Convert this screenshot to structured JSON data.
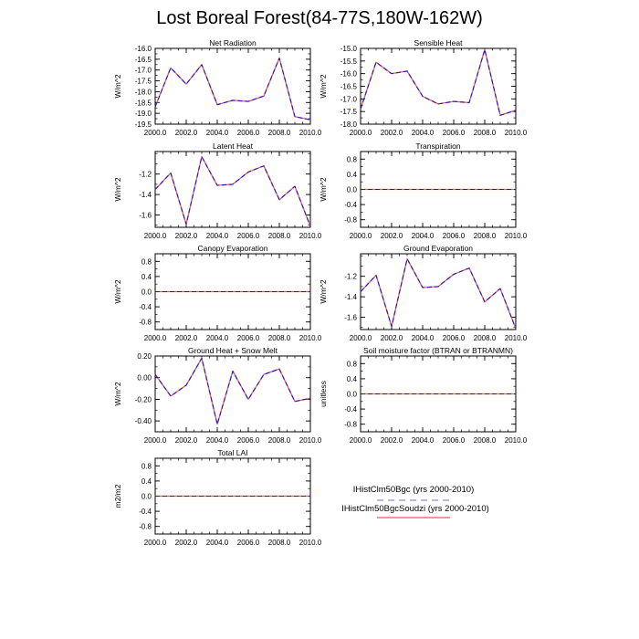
{
  "figure": {
    "title": "Lost Boreal Forest(84-77S,180W-162W)"
  },
  "legend": {
    "items": [
      {
        "label": "IHistClm50Bgc (yrs 2000-2010)",
        "color": "#8c8cd6",
        "style": "dashed"
      },
      {
        "label": "IHistClm50BgcSoudzi (yrs 2000-2010)",
        "color": "#e85a5a",
        "style": "solid"
      }
    ]
  },
  "chart_data": [
    {
      "type": "line",
      "title": "Net Radiation",
      "ylabel": "W/m^2",
      "x": [
        2000,
        2001,
        2002,
        2003,
        2004,
        2005,
        2006,
        2007,
        2008,
        2009,
        2010
      ],
      "xlim": [
        2000,
        2010
      ],
      "xticks": [
        "2000.0",
        "2002.0",
        "2004.0",
        "2006.0",
        "2008.0",
        "2010.0"
      ],
      "ylim": [
        -19.5,
        -16.0
      ],
      "yticks": [
        "-16.0",
        "-16.5",
        "-17.0",
        "-17.5",
        "-18.0",
        "-18.5",
        "-19.0",
        "-19.5"
      ],
      "series": [
        {
          "color": "#e85a5a",
          "dashed": false,
          "values": [
            -18.7,
            -16.9,
            -17.65,
            -16.75,
            -18.6,
            -18.4,
            -18.45,
            -18.2,
            -16.45,
            -19.15,
            -19.3
          ]
        },
        {
          "color": "#1a1acc",
          "dashed": true,
          "values": [
            -18.7,
            -16.9,
            -17.65,
            -16.75,
            -18.6,
            -18.4,
            -18.45,
            -18.2,
            -16.45,
            -19.15,
            -19.3
          ]
        }
      ]
    },
    {
      "type": "line",
      "title": "Sensible Heat",
      "ylabel": "W/m^2",
      "x": [
        2000,
        2001,
        2002,
        2003,
        2004,
        2005,
        2006,
        2007,
        2008,
        2009,
        2010
      ],
      "xlim": [
        2000,
        2010
      ],
      "xticks": [
        "2000.0",
        "2002.0",
        "2004.0",
        "2006.0",
        "2008.0",
        "2010.0"
      ],
      "ylim": [
        -18.0,
        -15.0
      ],
      "yticks": [
        "-15.0",
        "-15.5",
        "-16.0",
        "-16.5",
        "-17.0",
        "-17.5",
        "-18.0"
      ],
      "series": [
        {
          "color": "#e85a5a",
          "dashed": false,
          "values": [
            -17.4,
            -15.55,
            -16.0,
            -15.9,
            -16.9,
            -17.2,
            -17.1,
            -17.15,
            -15.05,
            -17.65,
            -17.45
          ]
        },
        {
          "color": "#1a1acc",
          "dashed": true,
          "values": [
            -17.4,
            -15.55,
            -16.0,
            -15.9,
            -16.9,
            -17.2,
            -17.1,
            -17.15,
            -15.05,
            -17.65,
            -17.45
          ]
        }
      ]
    },
    {
      "type": "line",
      "title": "Latent Heat",
      "ylabel": "W/m^2",
      "x": [
        2000,
        2001,
        2002,
        2003,
        2004,
        2005,
        2006,
        2007,
        2008,
        2009,
        2010
      ],
      "xlim": [
        2000,
        2010
      ],
      "xticks": [
        "2000.0",
        "2002.0",
        "2004.0",
        "2006.0",
        "2008.0",
        "2010.0"
      ],
      "ylim": [
        -1.72,
        -0.98
      ],
      "yticks": [
        "-1.2",
        "-1.4",
        "-1.6"
      ],
      "series": [
        {
          "color": "#e85a5a",
          "dashed": false,
          "values": [
            -1.35,
            -1.19,
            -1.69,
            -1.03,
            -1.31,
            -1.3,
            -1.18,
            -1.12,
            -1.45,
            -1.32,
            -1.71
          ]
        },
        {
          "color": "#1a1acc",
          "dashed": true,
          "values": [
            -1.35,
            -1.19,
            -1.69,
            -1.03,
            -1.31,
            -1.3,
            -1.18,
            -1.12,
            -1.45,
            -1.32,
            -1.71
          ]
        }
      ]
    },
    {
      "type": "line",
      "title": "Transpiration",
      "ylabel": "W/m^2",
      "x": [
        2000,
        2001,
        2002,
        2003,
        2004,
        2005,
        2006,
        2007,
        2008,
        2009,
        2010
      ],
      "xlim": [
        2000,
        2010
      ],
      "xticks": [
        "2000.0",
        "2002.0",
        "2004.0",
        "2006.0",
        "2008.0",
        "2010.0"
      ],
      "ylim": [
        -1.0,
        1.0
      ],
      "yticks": [
        "0.8",
        "0.4",
        "0.0",
        "-0.4",
        "-0.8"
      ],
      "series": [
        {
          "color": "#e85a5a",
          "dashed": false,
          "values": [
            0,
            0,
            0,
            0,
            0,
            0,
            0,
            0,
            0,
            0,
            0
          ]
        },
        {
          "color": "#1a1acc",
          "dashed": true,
          "values": [
            0,
            0,
            0,
            0,
            0,
            0,
            0,
            0,
            0,
            0,
            0
          ]
        }
      ]
    },
    {
      "type": "line",
      "title": "Canopy Evaporation",
      "ylabel": "W/m^2",
      "x": [
        2000,
        2001,
        2002,
        2003,
        2004,
        2005,
        2006,
        2007,
        2008,
        2009,
        2010
      ],
      "xlim": [
        2000,
        2010
      ],
      "xticks": [
        "2000.0",
        "2002.0",
        "2004.0",
        "2006.0",
        "2008.0",
        "2010.0"
      ],
      "ylim": [
        -1.0,
        1.0
      ],
      "yticks": [
        "0.8",
        "0.4",
        "0.0",
        "-0.4",
        "-0.8"
      ],
      "series": [
        {
          "color": "#e85a5a",
          "dashed": false,
          "values": [
            0,
            0,
            0,
            0,
            0,
            0,
            0,
            0,
            0,
            0,
            0
          ]
        },
        {
          "color": "#1a1acc",
          "dashed": true,
          "values": [
            0,
            0,
            0,
            0,
            0,
            0,
            0,
            0,
            0,
            0,
            0
          ]
        }
      ]
    },
    {
      "type": "line",
      "title": "Ground Evaporation",
      "ylabel": "W/m^2",
      "x": [
        2000,
        2001,
        2002,
        2003,
        2004,
        2005,
        2006,
        2007,
        2008,
        2009,
        2010
      ],
      "xlim": [
        2000,
        2010
      ],
      "xticks": [
        "2000.0",
        "2002.0",
        "2004.0",
        "2006.0",
        "2008.0",
        "2010.0"
      ],
      "ylim": [
        -1.72,
        -0.98
      ],
      "yticks": [
        "-1.2",
        "-1.4",
        "-1.6"
      ],
      "series": [
        {
          "color": "#e85a5a",
          "dashed": false,
          "values": [
            -1.35,
            -1.19,
            -1.69,
            -1.03,
            -1.31,
            -1.3,
            -1.18,
            -1.12,
            -1.45,
            -1.32,
            -1.71
          ]
        },
        {
          "color": "#1a1acc",
          "dashed": true,
          "values": [
            -1.35,
            -1.19,
            -1.69,
            -1.03,
            -1.31,
            -1.3,
            -1.18,
            -1.12,
            -1.45,
            -1.32,
            -1.71
          ]
        }
      ]
    },
    {
      "type": "line",
      "title": "Ground Heat + Snow Melt",
      "ylabel": "W/m^2",
      "x": [
        2000,
        2001,
        2002,
        2003,
        2004,
        2005,
        2006,
        2007,
        2008,
        2009,
        2010
      ],
      "xlim": [
        2000,
        2010
      ],
      "xticks": [
        "2000.0",
        "2002.0",
        "2004.0",
        "2006.0",
        "2008.0",
        "2010.0"
      ],
      "ylim": [
        -0.5,
        0.2
      ],
      "yticks": [
        "0.20",
        "0.00",
        "-0.20",
        "-0.40"
      ],
      "series": [
        {
          "color": "#e85a5a",
          "dashed": false,
          "values": [
            0.03,
            -0.17,
            -0.07,
            0.18,
            -0.43,
            0.06,
            -0.2,
            0.03,
            0.08,
            -0.22,
            -0.19
          ]
        },
        {
          "color": "#1a1acc",
          "dashed": true,
          "values": [
            0.03,
            -0.17,
            -0.07,
            0.18,
            -0.43,
            0.06,
            -0.2,
            0.03,
            0.08,
            -0.22,
            -0.19
          ]
        }
      ]
    },
    {
      "type": "line",
      "title": "Soil moisture factor (BTRAN or BTRANMN)",
      "ylabel": "unitless",
      "x": [
        2000,
        2001,
        2002,
        2003,
        2004,
        2005,
        2006,
        2007,
        2008,
        2009,
        2010
      ],
      "xlim": [
        2000,
        2010
      ],
      "xticks": [
        "2000.0",
        "2002.0",
        "2004.0",
        "2006.0",
        "2008.0",
        "2010.0"
      ],
      "ylim": [
        -1.0,
        1.0
      ],
      "yticks": [
        "0.8",
        "0.4",
        "0.0",
        "-0.4",
        "-0.8"
      ],
      "series": [
        {
          "color": "#e85a5a",
          "dashed": false,
          "values": [
            0,
            0,
            0,
            0,
            0,
            0,
            0,
            0,
            0,
            0,
            0
          ]
        },
        {
          "color": "#1a1acc",
          "dashed": true,
          "values": [
            0,
            0,
            0,
            0,
            0,
            0,
            0,
            0,
            0,
            0,
            0
          ]
        }
      ]
    },
    {
      "type": "line",
      "title": "Total LAI",
      "ylabel": "m2/m2",
      "x": [
        2000,
        2001,
        2002,
        2003,
        2004,
        2005,
        2006,
        2007,
        2008,
        2009,
        2010
      ],
      "xlim": [
        2000,
        2010
      ],
      "xticks": [
        "2000.0",
        "2002.0",
        "2004.0",
        "2006.0",
        "2008.0",
        "2010.0"
      ],
      "ylim": [
        -1.0,
        1.0
      ],
      "yticks": [
        "0.8",
        "0.4",
        "0.0",
        "-0.4",
        "-0.8"
      ],
      "series": [
        {
          "color": "#e85a5a",
          "dashed": false,
          "values": [
            0,
            0,
            0,
            0,
            0,
            0,
            0,
            0,
            0,
            0,
            0
          ]
        },
        {
          "color": "#1a1acc",
          "dashed": true,
          "values": [
            0,
            0,
            0,
            0,
            0,
            0,
            0,
            0,
            0,
            0,
            0
          ]
        }
      ]
    }
  ]
}
